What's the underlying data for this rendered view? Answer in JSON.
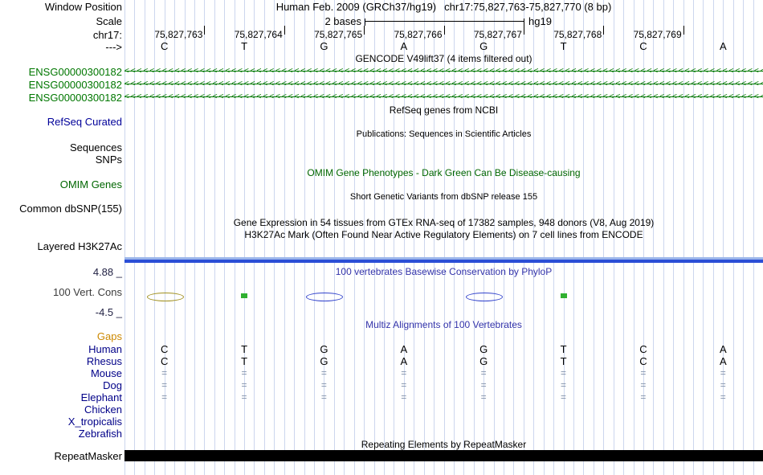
{
  "colors": {
    "gridline": "#ccd6ee",
    "gene_green": "#007700",
    "omim_green": "#006600",
    "track_label_navy": "#000099",
    "title_blue": "#3333aa",
    "gaps_orange": "#cc8800",
    "species_navy": "#000088",
    "gap_mark": "#8090a8",
    "signal_bar_blue": "#2b4ed6",
    "signal_bar_light": "#9cb6ea",
    "repeat_black": "#000000"
  },
  "header": {
    "window_position_label": "Window Position",
    "assembly": "Human Feb. 2009 (GRCh37/hg19)",
    "position": "chr17:75,827,763-75,827,770 (8 bp)",
    "scale_label": "Scale",
    "scale_value": "2 bases",
    "genome": "hg19",
    "chrom_label": "chr17:",
    "strand_label": "--->",
    "ruler_positions": [
      "75,827,763",
      "75,827,764",
      "75,827,765",
      "75,827,766",
      "75,827,767",
      "75,827,768",
      "75,827,769"
    ],
    "bases": [
      "C",
      "T",
      "G",
      "A",
      "G",
      "T",
      "C",
      "A"
    ]
  },
  "tracks": {
    "gencode": {
      "title": "GENCODE V49lift37 (4 items filtered out)",
      "genes": [
        "ENSG00000300182",
        "ENSG00000300182",
        "ENSG00000300182"
      ],
      "strand_glyph": "<"
    },
    "refseq": {
      "title": "RefSeq genes from NCBI",
      "label": "RefSeq Curated"
    },
    "publications": {
      "title": "Publications: Sequences in Scientific Articles",
      "sequences_label": "Sequences",
      "snps_label": "SNPs"
    },
    "omim": {
      "title": "OMIM Gene Phenotypes - Dark Green Can Be Disease-causing",
      "label": "OMIM Genes"
    },
    "dbsnp": {
      "title": "Short Genetic Variants from dbSNP release 155",
      "label": "Common dbSNP(155)"
    },
    "gtex": {
      "title": "Gene Expression in 54 tissues from GTEx RNA-seq of 17382 samples, 948 donors (V8, Aug 2019)"
    },
    "h3k27ac": {
      "title": "H3K27Ac Mark (Often Found Near Active Regulatory Elements) on 7 cell lines from ENCODE",
      "label": "Layered H3K27Ac"
    },
    "conservation": {
      "title": "100 vertebrates Basewise Conservation by PhyloP",
      "label": "100 Vert. Cons",
      "max_label": "4.88 _",
      "min_label": "-4.5 _",
      "glyphs": [
        {
          "base_index": 0,
          "shape": "ellipse",
          "color": "#a09020"
        },
        {
          "base_index": 1,
          "shape": "square",
          "color": "#30b030"
        },
        {
          "base_index": 2,
          "shape": "ellipse",
          "color": "#3344cc"
        },
        {
          "base_index": 4,
          "shape": "ellipse",
          "color": "#3344cc"
        },
        {
          "base_index": 5,
          "shape": "square",
          "color": "#30b030"
        }
      ]
    },
    "multiz": {
      "title": "Multiz Alignments of 100 Vertebrates",
      "gaps_label": "Gaps",
      "species": [
        {
          "name": "Human",
          "cells": [
            "C",
            "T",
            "G",
            "A",
            "G",
            "T",
            "C",
            "A"
          ]
        },
        {
          "name": "Rhesus",
          "cells": [
            "C",
            "T",
            "G",
            "A",
            "G",
            "T",
            "C",
            "A"
          ]
        },
        {
          "name": "Mouse",
          "cells": [
            "=",
            "=",
            "=",
            "=",
            "=",
            "=",
            "=",
            "="
          ]
        },
        {
          "name": "Dog",
          "cells": [
            "=",
            "=",
            "=",
            "=",
            "=",
            "=",
            "=",
            "="
          ]
        },
        {
          "name": "Elephant",
          "cells": [
            "=",
            "=",
            "=",
            "=",
            "=",
            "=",
            "=",
            "="
          ]
        },
        {
          "name": "Chicken",
          "cells": []
        },
        {
          "name": "X_tropicalis",
          "cells": []
        },
        {
          "name": "Zebrafish",
          "cells": []
        }
      ]
    },
    "repeatmasker": {
      "title": "Repeating Elements by RepeatMasker",
      "label": "RepeatMasker"
    }
  }
}
